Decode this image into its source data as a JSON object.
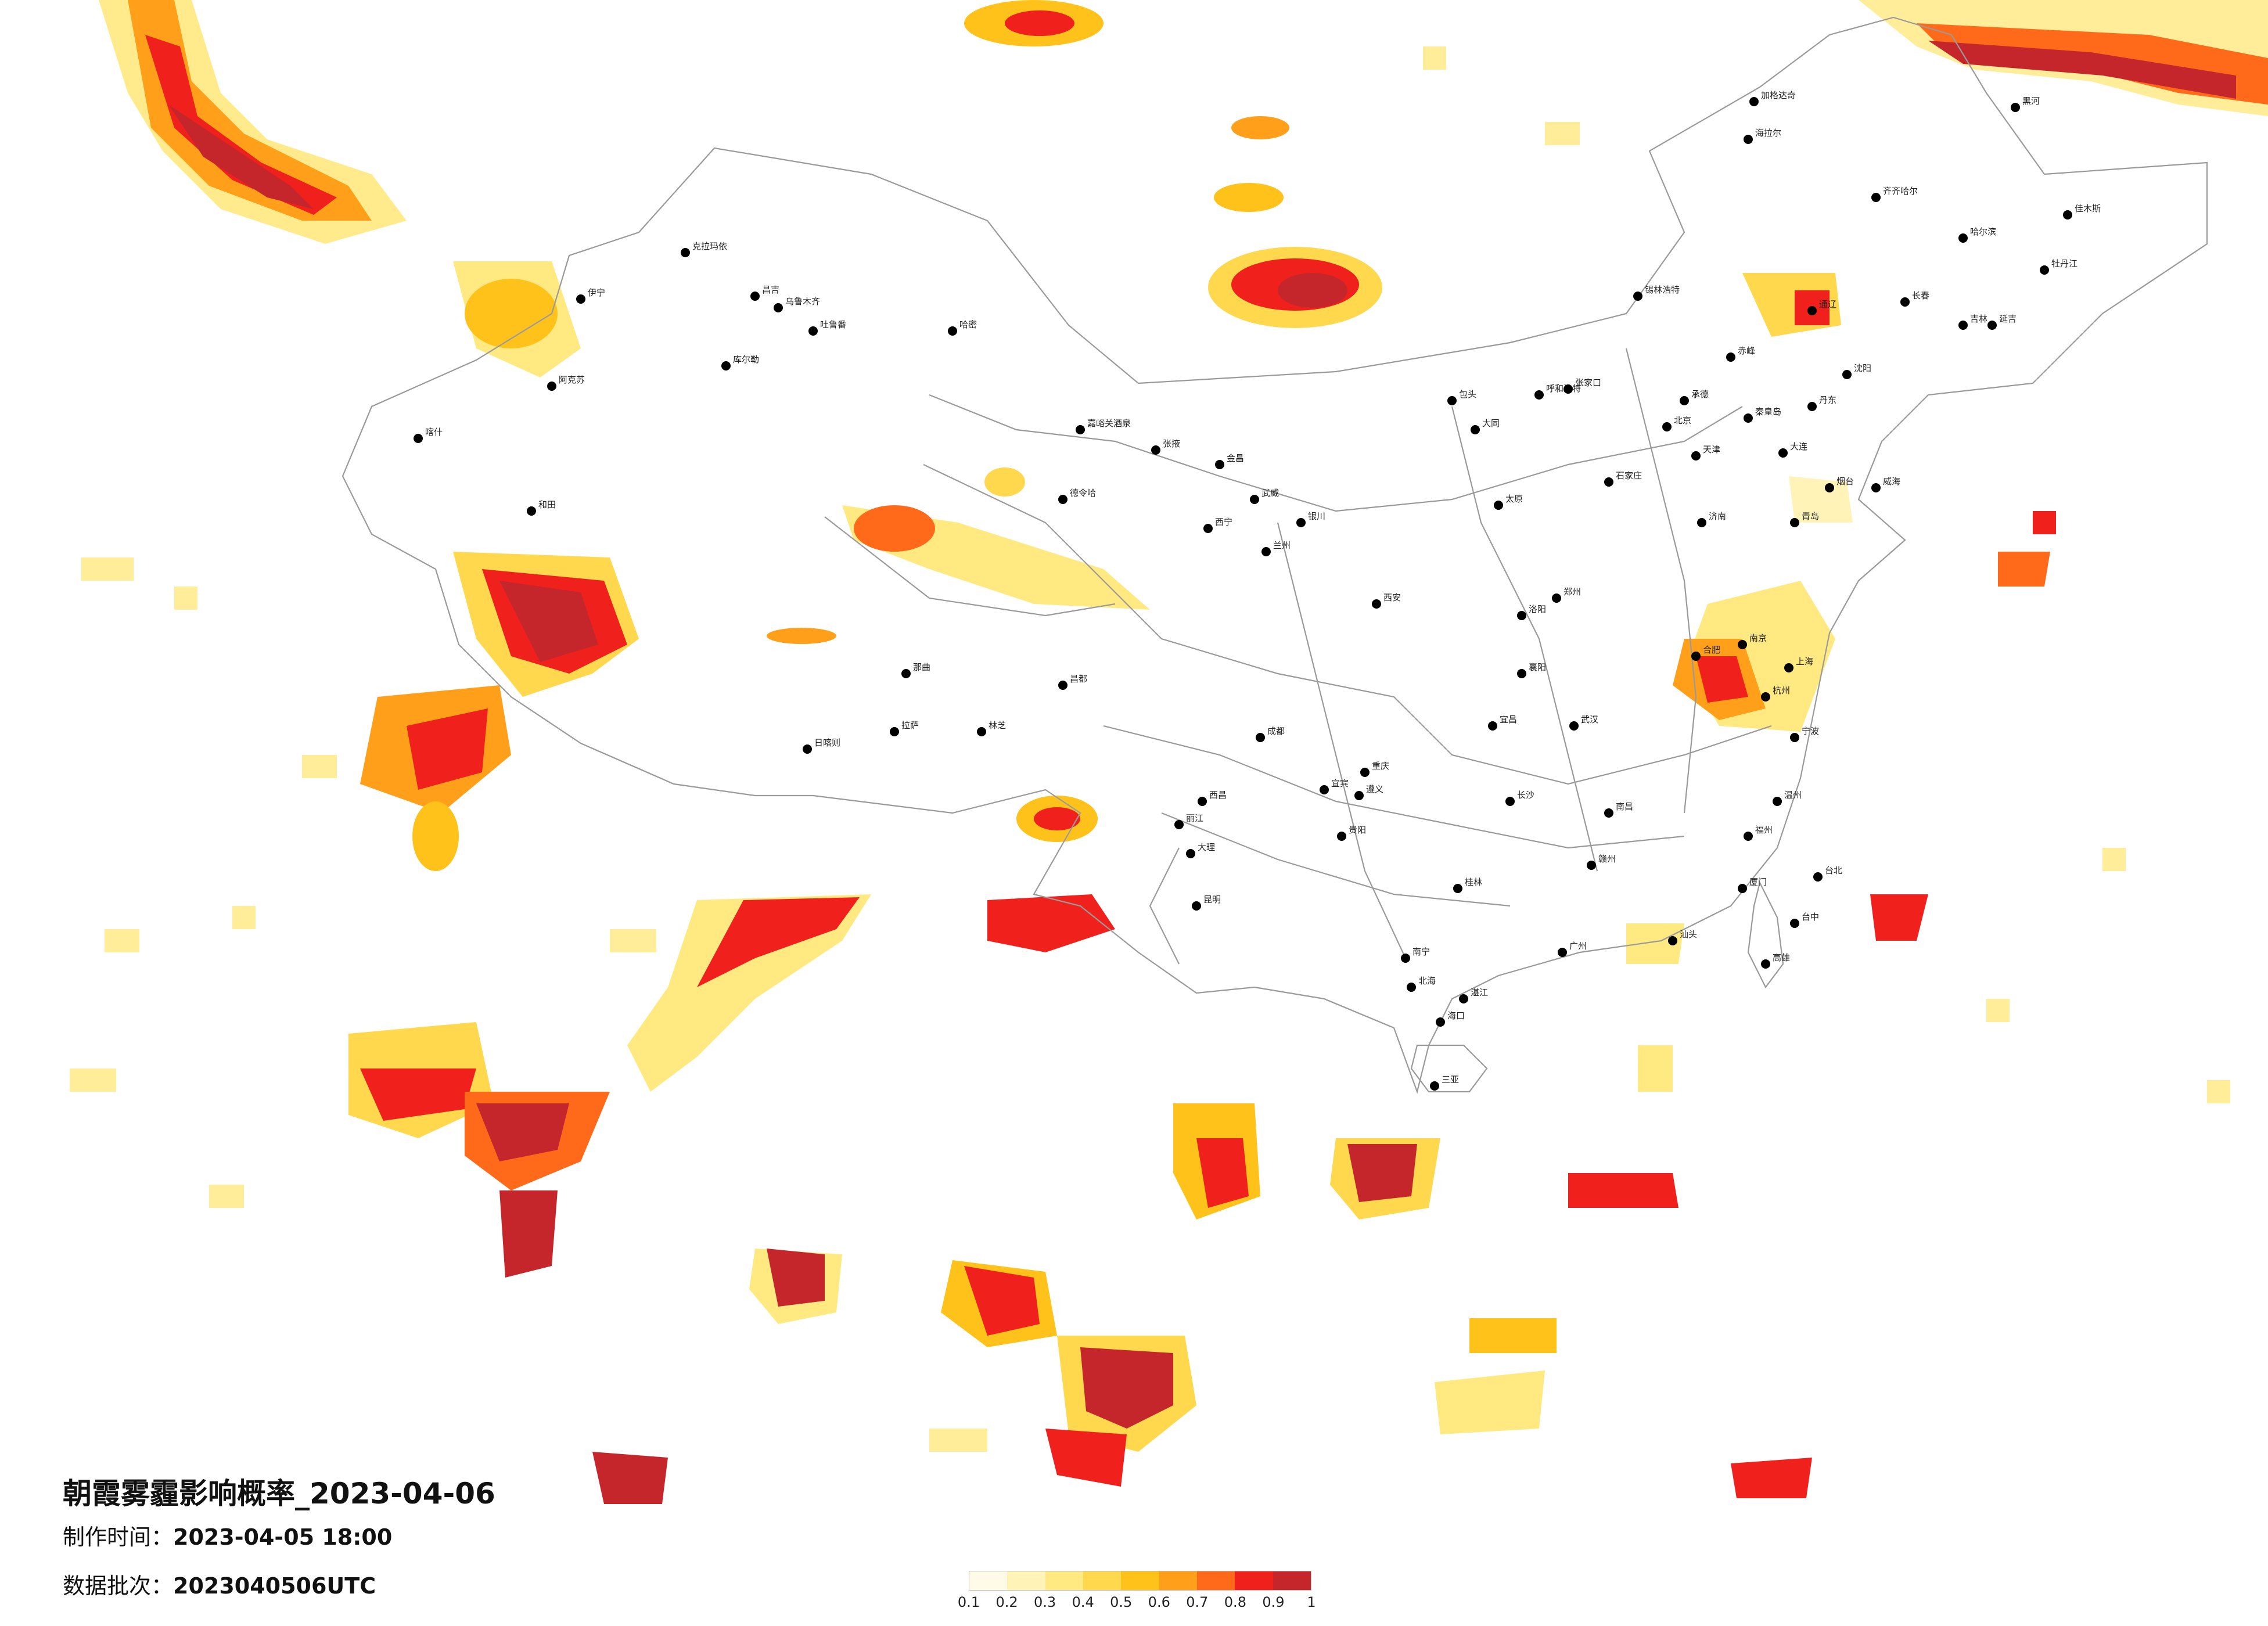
{
  "title": "朝霞雾霾影响概率_2023-04-06",
  "made_time": {
    "label": "制作时间：",
    "value": "2023-04-05 18:00"
  },
  "data_batch": {
    "label": "数据批次：",
    "value": "2023040506UTC"
  },
  "legend": {
    "ticks": [
      "0.1",
      "0.2",
      "0.3",
      "0.4",
      "0.5",
      "0.6",
      "0.7",
      "0.8",
      "0.9",
      "1"
    ],
    "colors": [
      "#fffbe6",
      "#fff3b8",
      "#ffe980",
      "#ffd84d",
      "#ffc21a",
      "#ff9f1a",
      "#ff6a1a",
      "#f0201c",
      "#c4262b"
    ]
  },
  "palette": {
    "boundary": "#9a9a9a",
    "city_dot": "#000000"
  },
  "cities": [
    {
      "name": "克拉玛依"
    },
    {
      "name": "昌吉"
    },
    {
      "name": "乌鲁木齐"
    },
    {
      "name": "吐鲁番"
    },
    {
      "name": "哈密"
    },
    {
      "name": "库尔勒"
    },
    {
      "name": "阿克苏"
    },
    {
      "name": "喀什"
    },
    {
      "name": "和田"
    },
    {
      "name": "伊宁"
    },
    {
      "name": "嘉峪关酒泉"
    },
    {
      "name": "张掖"
    },
    {
      "name": "金昌"
    },
    {
      "name": "武威"
    },
    {
      "name": "德令哈"
    },
    {
      "name": "西宁"
    },
    {
      "name": "兰州"
    },
    {
      "name": "银川"
    },
    {
      "name": "呼和浩特"
    },
    {
      "name": "包头"
    },
    {
      "name": "北京"
    },
    {
      "name": "天津"
    },
    {
      "name": "石家庄"
    },
    {
      "name": "太原"
    },
    {
      "name": "济南"
    },
    {
      "name": "郑州"
    },
    {
      "name": "西安"
    },
    {
      "name": "合肥"
    },
    {
      "name": "南京"
    },
    {
      "name": "上海"
    },
    {
      "name": "杭州"
    },
    {
      "name": "武汉"
    },
    {
      "name": "长沙"
    },
    {
      "name": "南昌"
    },
    {
      "name": "福州"
    },
    {
      "name": "广州"
    },
    {
      "name": "南宁"
    },
    {
      "name": "海口"
    },
    {
      "name": "贵阳"
    },
    {
      "name": "昆明"
    },
    {
      "name": "成都"
    },
    {
      "name": "重庆"
    },
    {
      "name": "拉萨"
    },
    {
      "name": "日喀则"
    },
    {
      "name": "林芝"
    },
    {
      "name": "那曲"
    },
    {
      "name": "昌都"
    },
    {
      "name": "哈尔滨"
    },
    {
      "name": "长春"
    },
    {
      "name": "沈阳"
    },
    {
      "name": "大连"
    },
    {
      "name": "齐齐哈尔"
    },
    {
      "name": "海拉尔"
    },
    {
      "name": "加格达奇"
    },
    {
      "name": "黑河"
    },
    {
      "name": "锡林浩特"
    },
    {
      "name": "通辽"
    },
    {
      "name": "赤峰"
    },
    {
      "name": "青岛"
    },
    {
      "name": "厦门"
    },
    {
      "name": "台北"
    },
    {
      "name": "台中"
    },
    {
      "name": "高雄"
    },
    {
      "name": "三亚"
    },
    {
      "name": "桂林"
    },
    {
      "name": "遵义"
    },
    {
      "name": "大理"
    },
    {
      "name": "丽江"
    },
    {
      "name": "西昌"
    },
    {
      "name": "宜宾"
    },
    {
      "name": "宜昌"
    },
    {
      "name": "襄阳"
    },
    {
      "name": "洛阳"
    },
    {
      "name": "大同"
    },
    {
      "name": "张家口"
    },
    {
      "name": "承德"
    },
    {
      "name": "秦皇岛"
    },
    {
      "name": "烟台"
    },
    {
      "name": "威海"
    },
    {
      "name": "温州"
    },
    {
      "name": "宁波"
    },
    {
      "name": "赣州"
    },
    {
      "name": "汕头"
    },
    {
      "name": "湛江"
    },
    {
      "name": "北海"
    },
    {
      "name": "吉林"
    },
    {
      "name": "佳木斯"
    },
    {
      "name": "牡丹江"
    },
    {
      "name": "丹东"
    },
    {
      "name": "延吉"
    }
  ]
}
